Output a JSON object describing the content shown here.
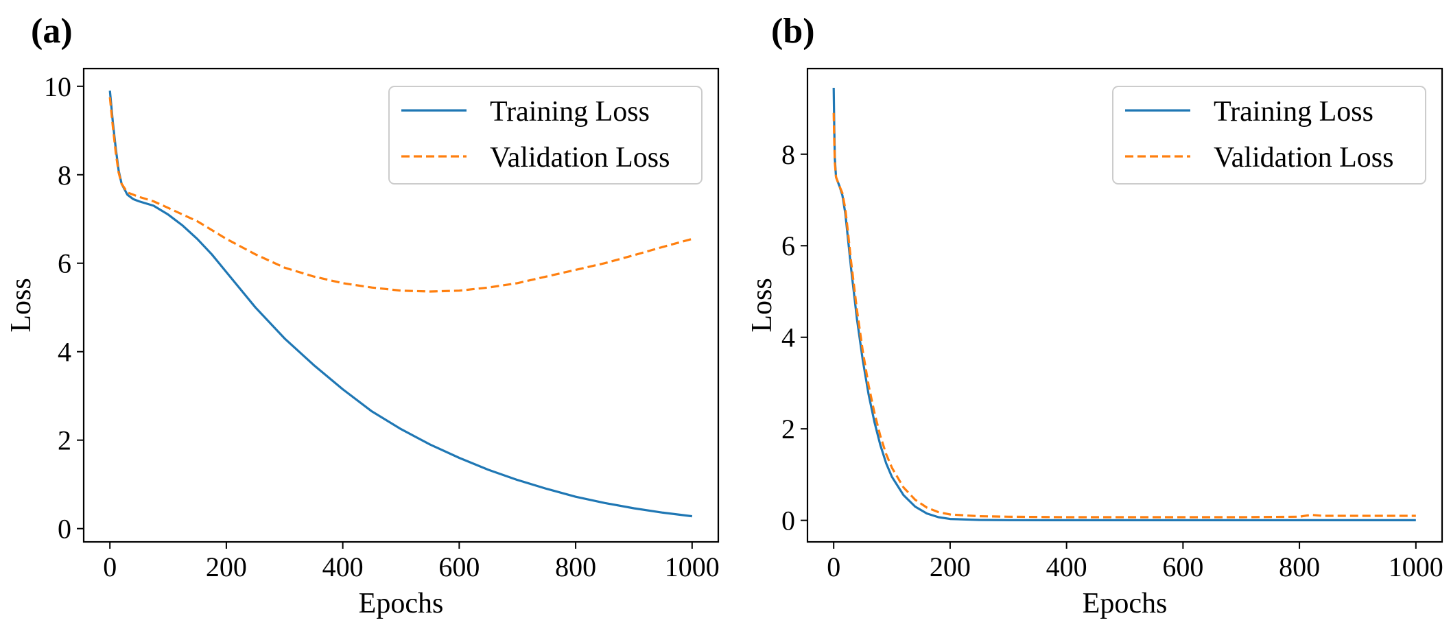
{
  "figure": {
    "panels": [
      "(a)",
      "(b)"
    ]
  },
  "colors": {
    "training": "#1f77b4",
    "validation": "#ff7f0e"
  },
  "chart_data": [
    {
      "type": "line",
      "panel_label": "(a)",
      "title": "",
      "xlabel": "Epochs",
      "ylabel": "Loss",
      "xlim": [
        -45,
        1045
      ],
      "ylim": [
        -0.3,
        10.4
      ],
      "xticks": [
        0,
        200,
        400,
        600,
        800,
        1000
      ],
      "yticks": [
        0,
        2,
        4,
        6,
        8,
        10
      ],
      "grid": false,
      "legend_position": "top-right",
      "series": [
        {
          "name": "Training Loss",
          "style": "solid",
          "x": [
            0,
            5,
            10,
            15,
            20,
            30,
            40,
            50,
            75,
            100,
            125,
            150,
            175,
            200,
            250,
            300,
            350,
            400,
            450,
            500,
            550,
            600,
            650,
            700,
            750,
            800,
            850,
            900,
            950,
            1000
          ],
          "y": [
            9.9,
            9.2,
            8.6,
            8.1,
            7.8,
            7.55,
            7.45,
            7.4,
            7.3,
            7.1,
            6.85,
            6.55,
            6.2,
            5.8,
            5.0,
            4.3,
            3.7,
            3.15,
            2.65,
            2.25,
            1.9,
            1.6,
            1.33,
            1.1,
            0.9,
            0.72,
            0.58,
            0.46,
            0.36,
            0.28
          ]
        },
        {
          "name": "Validation Loss",
          "style": "dashed",
          "x": [
            0,
            5,
            10,
            15,
            20,
            30,
            40,
            50,
            75,
            100,
            150,
            200,
            250,
            300,
            350,
            400,
            450,
            500,
            550,
            600,
            650,
            700,
            750,
            800,
            850,
            900,
            950,
            1000
          ],
          "y": [
            9.75,
            9.1,
            8.5,
            8.05,
            7.8,
            7.6,
            7.55,
            7.5,
            7.4,
            7.25,
            6.95,
            6.55,
            6.2,
            5.9,
            5.7,
            5.55,
            5.45,
            5.38,
            5.36,
            5.38,
            5.45,
            5.55,
            5.7,
            5.85,
            6.0,
            6.18,
            6.37,
            6.55
          ]
        }
      ]
    },
    {
      "type": "line",
      "panel_label": "(b)",
      "title": "",
      "xlabel": "Epochs",
      "ylabel": "Loss",
      "xlim": [
        -45,
        1045
      ],
      "ylim": [
        -0.47,
        9.87
      ],
      "xticks": [
        0,
        200,
        400,
        600,
        800,
        1000
      ],
      "yticks": [
        0,
        2,
        4,
        6,
        8
      ],
      "grid": false,
      "legend_position": "top-right",
      "series": [
        {
          "name": "Training Loss",
          "style": "solid",
          "x": [
            0,
            1,
            2,
            4,
            7,
            10,
            15,
            20,
            25,
            30,
            40,
            50,
            60,
            70,
            80,
            90,
            100,
            120,
            140,
            160,
            180,
            200,
            250,
            300,
            400,
            500,
            600,
            700,
            800,
            900,
            1000
          ],
          "y": [
            9.45,
            8.6,
            7.9,
            7.5,
            7.4,
            7.3,
            7.1,
            6.7,
            6.1,
            5.5,
            4.4,
            3.5,
            2.75,
            2.15,
            1.65,
            1.25,
            0.95,
            0.55,
            0.3,
            0.15,
            0.07,
            0.03,
            0.01,
            0.005,
            0.003,
            0.003,
            0.003,
            0.003,
            0.003,
            0.003,
            0.003
          ]
        },
        {
          "name": "Validation Loss",
          "style": "dashed",
          "x": [
            0,
            1,
            2,
            4,
            7,
            10,
            15,
            20,
            25,
            30,
            40,
            50,
            60,
            70,
            80,
            90,
            100,
            120,
            140,
            160,
            180,
            200,
            250,
            300,
            400,
            500,
            600,
            700,
            800,
            820,
            840,
            900,
            1000
          ],
          "y": [
            8.9,
            8.3,
            7.8,
            7.5,
            7.4,
            7.3,
            7.15,
            6.8,
            6.25,
            5.65,
            4.6,
            3.7,
            2.95,
            2.35,
            1.85,
            1.45,
            1.15,
            0.72,
            0.45,
            0.28,
            0.18,
            0.13,
            0.09,
            0.08,
            0.07,
            0.07,
            0.07,
            0.07,
            0.08,
            0.12,
            0.1,
            0.1,
            0.1
          ]
        }
      ]
    }
  ]
}
